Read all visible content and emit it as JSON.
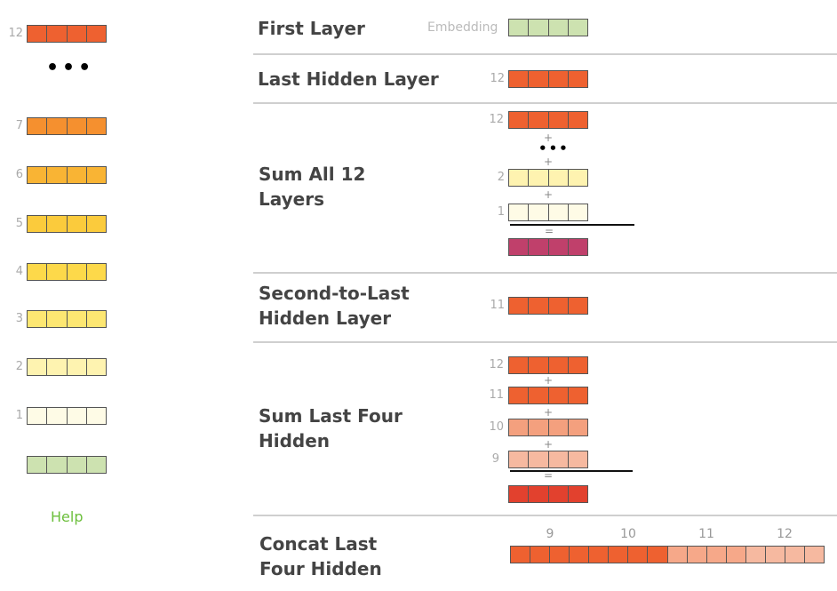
{
  "legend": {
    "layers": [
      {
        "label": "12",
        "color": "#ee6130"
      },
      {
        "label": "7",
        "color": "#f5902f"
      },
      {
        "label": "6",
        "color": "#f9b434"
      },
      {
        "label": "5",
        "color": "#fbcb3c"
      },
      {
        "label": "4",
        "color": "#fdd94a"
      },
      {
        "label": "3",
        "color": "#fde772"
      },
      {
        "label": "2",
        "color": "#fef3b0"
      },
      {
        "label": "1",
        "color": "#fefbe6"
      },
      {
        "label": "",
        "color": "#cde2b0"
      }
    ],
    "ellipsis": "•••",
    "help_label": "Help"
  },
  "rows": {
    "first_layer": {
      "title": "First Layer",
      "embedding_label": "Embedding",
      "color": "#cde2b0"
    },
    "last_hidden": {
      "title": "Last Hidden Layer",
      "layer": "12",
      "color": "#ee6130"
    },
    "sum_all": {
      "title": "Sum All 12\nLayers",
      "inputs": [
        {
          "label": "12",
          "color": "#ee6130"
        },
        {
          "label": "2",
          "color": "#fef3b0"
        },
        {
          "label": "1",
          "color": "#fefbe6"
        }
      ],
      "plus": "+",
      "equals": "=",
      "ellipsis": "•••",
      "result_color": "#c0406b"
    },
    "second_to_last": {
      "title": "Second-to-Last\nHidden Layer",
      "layer": "11",
      "color": "#ee6130"
    },
    "sum_last_four": {
      "title": "Sum Last Four\nHidden",
      "inputs": [
        {
          "label": "12",
          "color": "#ee6130"
        },
        {
          "label": "11",
          "color": "#ee6130"
        },
        {
          "label": "10",
          "color": "#f4a07e"
        },
        {
          "label": "9",
          "color": "#f6b9a0"
        }
      ],
      "plus": "+",
      "equals": "=",
      "result_color": "#e2412e"
    },
    "concat_last_four": {
      "title": "Concat Last\nFour Hidden",
      "segments": [
        {
          "label": "9",
          "color": "#ee6130"
        },
        {
          "label": "10",
          "color": "#ee6130"
        },
        {
          "label": "11",
          "color": "#f6a889"
        },
        {
          "label": "12",
          "color": "#f6b9a0"
        }
      ]
    }
  }
}
